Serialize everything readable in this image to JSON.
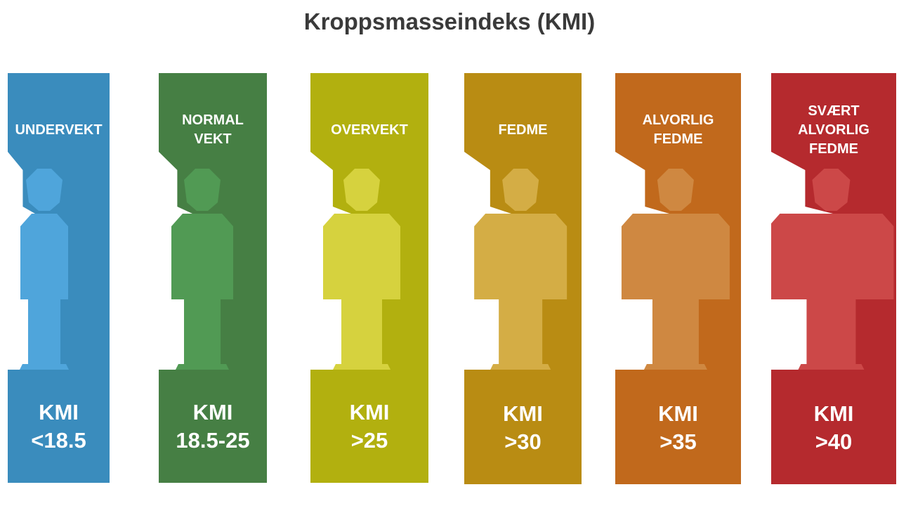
{
  "title": "Kroppsmasseindeks (KMI)",
  "categories": [
    {
      "label": "UNDERVEKT",
      "kmi_label": "KMI",
      "range": "<18.5",
      "panel_color": "#3a8cbd",
      "figure_color": "#4fa5db",
      "cut_color": "#ffffff"
    },
    {
      "label": "NORMAL\nVEKT",
      "kmi_label": "KMI",
      "range": "18.5-25",
      "panel_color": "#467f44",
      "figure_color": "#519a54",
      "cut_color": "#ffffff"
    },
    {
      "label": "OVERVEKT",
      "kmi_label": "KMI",
      "range": ">25",
      "panel_color": "#b2b00f",
      "figure_color": "#d6d23e",
      "cut_color": "#ffffff"
    },
    {
      "label": "FEDME",
      "kmi_label": "KMI",
      "range": ">30",
      "panel_color": "#b98c13",
      "figure_color": "#d4ad45",
      "cut_color": "#ffffff"
    },
    {
      "label": "ALVORLIG\nFEDME",
      "kmi_label": "KMI",
      "range": ">35",
      "panel_color": "#c1691c",
      "figure_color": "#cf8841",
      "cut_color": "#ffffff"
    },
    {
      "label": "SVÆRT\nALVORLIG\nFEDME",
      "kmi_label": "KMI",
      "range": ">40",
      "panel_color": "#b52a2e",
      "figure_color": "#cc4848",
      "cut_color": "#ffffff"
    }
  ]
}
